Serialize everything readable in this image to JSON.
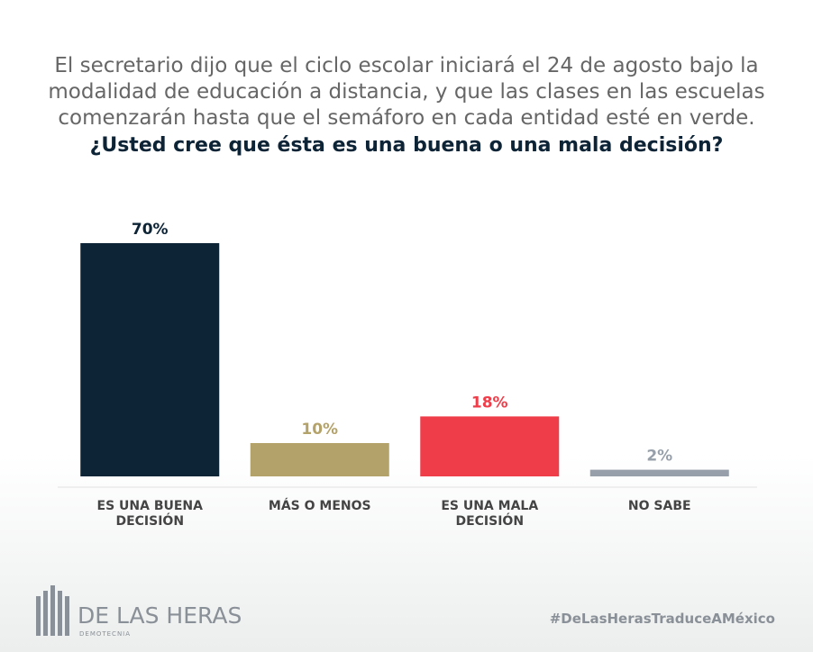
{
  "chart_data": {
    "type": "bar",
    "title": [
      "El secretario dijo que el ciclo escolar iniciará el 24 de agosto bajo la",
      "modalidad de educación a distancia, y que las clases en las escuelas",
      "comenzarán hasta que el semáforo en cada entidad esté en verde."
    ],
    "subtitle": "¿Usted cree que ésta es una buena o una mala decisión?",
    "categories": [
      "ES UNA BUENA DECISIÓN",
      "MÁS O MENOS",
      "ES UNA MALA DECISIÓN",
      "NO SABE"
    ],
    "values": [
      70,
      10,
      18,
      2
    ],
    "value_labels": [
      "70%",
      "10%",
      "18%",
      "2%"
    ],
    "colors": [
      "#0d2336",
      "#b4a26b",
      "#ef3e4a",
      "#97a0aa"
    ],
    "ylim": [
      0,
      70
    ]
  },
  "footer": {
    "brand": "DE LAS HERAS",
    "brand_sub": "DEMOTECNIA",
    "hashtag": "#DeLasHerasTraduceAMéxico"
  }
}
